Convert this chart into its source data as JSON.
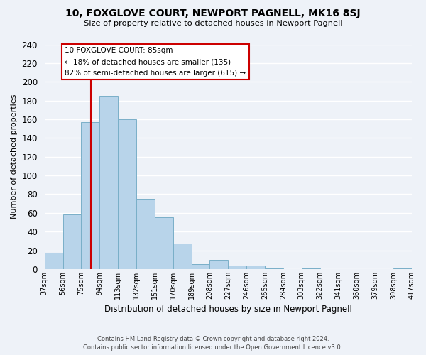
{
  "title": "10, FOXGLOVE COURT, NEWPORT PAGNELL, MK16 8SJ",
  "subtitle": "Size of property relative to detached houses in Newport Pagnell",
  "xlabel": "Distribution of detached houses by size in Newport Pagnell",
  "ylabel": "Number of detached properties",
  "bar_color": "#b8d4ea",
  "bar_edge_color": "#7aafc8",
  "bg_color": "#eef2f8",
  "grid_color": "#ffffff",
  "bin_edges": [
    37,
    56,
    75,
    94,
    113,
    132,
    151,
    170,
    189,
    208,
    227,
    246,
    265,
    284,
    303,
    322,
    341,
    360,
    379,
    398,
    417
  ],
  "bin_labels": [
    "37sqm",
    "56sqm",
    "75sqm",
    "94sqm",
    "113sqm",
    "132sqm",
    "151sqm",
    "170sqm",
    "189sqm",
    "208sqm",
    "227sqm",
    "246sqm",
    "265sqm",
    "284sqm",
    "303sqm",
    "322sqm",
    "341sqm",
    "360sqm",
    "379sqm",
    "398sqm",
    "417sqm"
  ],
  "counts": [
    17,
    58,
    157,
    185,
    160,
    75,
    55,
    27,
    5,
    10,
    4,
    4,
    1,
    0,
    1,
    0,
    0,
    0,
    0,
    1
  ],
  "vline_x": 85,
  "vline_color": "#cc0000",
  "annotation_title": "10 FOXGLOVE COURT: 85sqm",
  "annotation_line1": "← 18% of detached houses are smaller (135)",
  "annotation_line2": "82% of semi-detached houses are larger (615) →",
  "annotation_box_color": "white",
  "annotation_box_edge_color": "#cc0000",
  "footer_line1": "Contains HM Land Registry data © Crown copyright and database right 2024.",
  "footer_line2": "Contains public sector information licensed under the Open Government Licence v3.0.",
  "ylim": [
    0,
    240
  ],
  "yticks": [
    0,
    20,
    40,
    60,
    80,
    100,
    120,
    140,
    160,
    180,
    200,
    220,
    240
  ]
}
